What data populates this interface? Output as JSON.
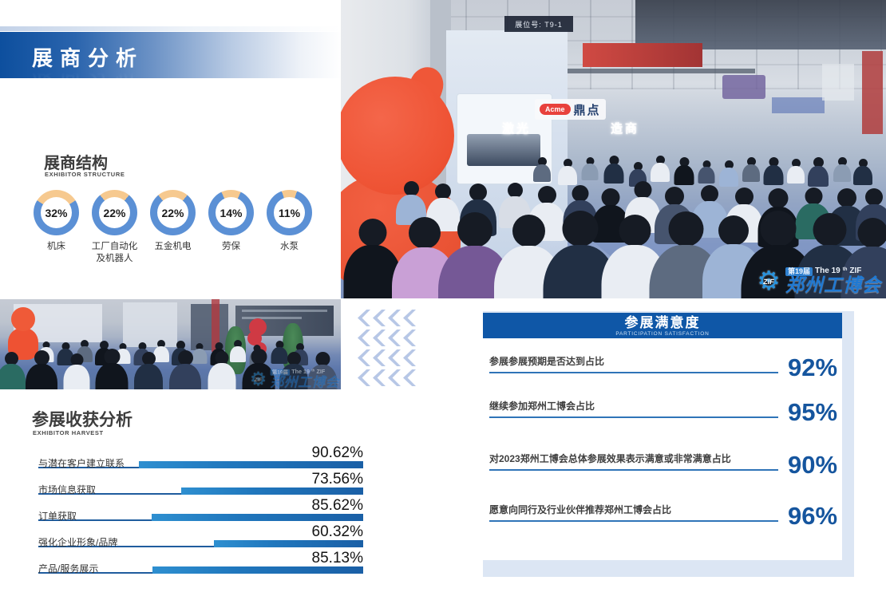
{
  "slide": {
    "title": "展商分析"
  },
  "structure": {
    "title": "展商结构",
    "subtitle": "EXHIBITOR STRUCTURE"
  },
  "harvest": {
    "title": "参展收获分析",
    "subtitle": "EXHIBITOR HARVEST"
  },
  "satisfaction": {
    "title": "参展满意度",
    "subtitle": "PARTICIPATION SATISFACTION"
  },
  "photo_top": {
    "booth_sign": "展位号: T9-1",
    "brand_pill": "Acme",
    "brand_name": "鼎点",
    "glow_left": "激光",
    "glow_right": "造商"
  },
  "logo": {
    "edition": "第19届",
    "edition_en": "The 19",
    "edition_sup": "th",
    "edition_suffix": "ZIF",
    "gear_text": "ZIF",
    "name": "郑州工博会"
  },
  "icons": {
    "gear": "⚙"
  },
  "colors": {
    "banner_blue": "#0d4f9e",
    "accent_blue": "#0f57a7",
    "donut_ring": "#5b90d5",
    "donut_arc": "#f6c98f",
    "bar_gradient_start": "#2e8fd0",
    "bar_gradient_end": "#1a5fa6",
    "underline_blue": "#2f74b8",
    "value_blue": "#15559e",
    "chevron": "#b7c7e6",
    "panel_shadow": "#dce6f4"
  },
  "chart_data": [
    {
      "type": "pie",
      "variant": "donut-multiples",
      "title": "展商结构",
      "unit": "%",
      "legend_position": "below-each",
      "categories": [
        "机床",
        "工厂自动化及机器人",
        "五金机电",
        "劳保",
        "水泵"
      ],
      "values": [
        32,
        22,
        22,
        14,
        11
      ],
      "arc_color": "#f6c98f",
      "ring_color": "#5b90d5"
    },
    {
      "type": "bar",
      "orientation": "horizontal",
      "title": "参展收获分析",
      "unit": "%",
      "xlim": [
        0,
        100
      ],
      "bars_aligned": "right",
      "grid": false,
      "categories": [
        "与潜在客户建立联系",
        "市场信息获取",
        "订单获取",
        "强化企业形象/品牌",
        "产品/服务展示"
      ],
      "values": [
        90.62,
        73.56,
        85.62,
        60.32,
        85.13
      ],
      "value_labels": [
        "90.62%",
        "73.56%",
        "85.62%",
        "60.32%",
        "85.13%"
      ]
    },
    {
      "type": "table",
      "title": "参展满意度",
      "rows": [
        {
          "label": "参展参展预期是否达到占比",
          "value": "92%"
        },
        {
          "label": "继续参加郑州工博会占比",
          "value": "95%"
        },
        {
          "label": "对2023郑州工博会总体参展效果表示满意或非常满意占比",
          "value": "90%"
        },
        {
          "label": "愿意向同行及行业伙伴推荐郑州工博会占比",
          "value": "96%"
        }
      ]
    }
  ]
}
